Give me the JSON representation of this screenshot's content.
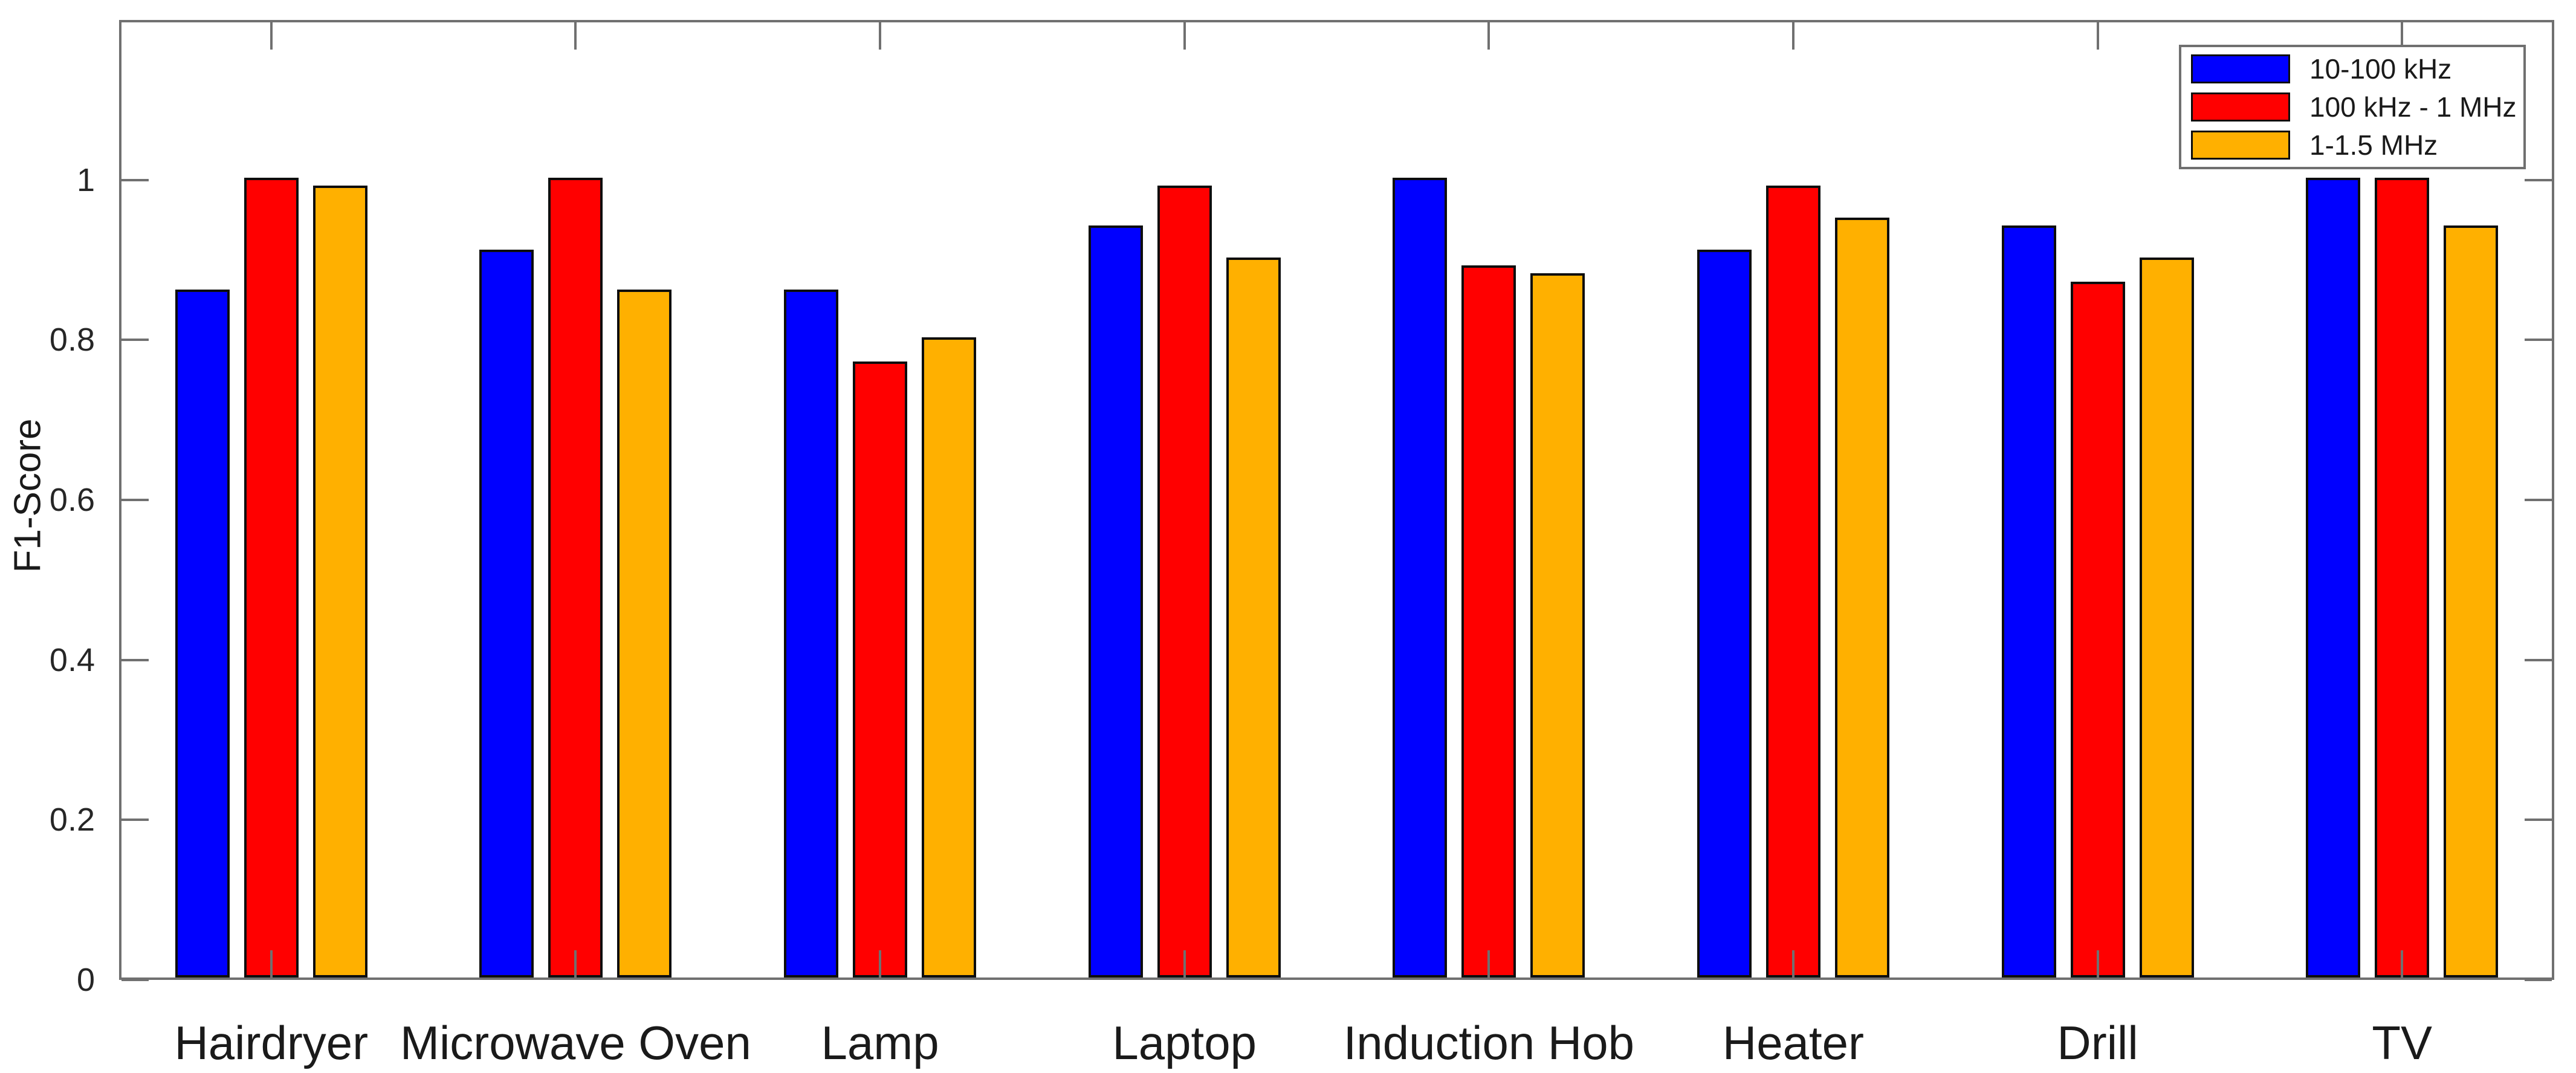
{
  "chart_data": {
    "type": "bar",
    "title": "",
    "categories": [
      "Hairdryer",
      "Microwave Oven",
      "Lamp",
      "Laptop",
      "Induction Hob",
      "Heater",
      "Drill",
      "TV"
    ],
    "series": [
      {
        "name": "10-100 kHz",
        "color": "#0000FF",
        "values": [
          0.86,
          0.91,
          0.86,
          0.94,
          1.0,
          0.91,
          0.94,
          1.0
        ]
      },
      {
        "name": "100 kHz - 1 MHz",
        "color": "#FF0000",
        "values": [
          1.0,
          1.0,
          0.77,
          0.99,
          0.89,
          0.99,
          0.87,
          1.0
        ]
      },
      {
        "name": "1-1.5 MHz",
        "color": "#FFB000",
        "values": [
          0.99,
          0.86,
          0.8,
          0.9,
          0.88,
          0.95,
          0.9,
          0.94
        ]
      }
    ],
    "xlabel": "",
    "ylabel": "F1-Score",
    "ylim": [
      0,
      1.2
    ],
    "yticks": [
      0,
      0.2,
      0.4,
      0.6,
      0.8,
      1
    ],
    "ytick_labels": [
      "0",
      "0.2",
      "0.4",
      "0.6",
      "0.8",
      "1"
    ],
    "grid": false,
    "legend_position": "top-right",
    "bar_edge_color": "#0D0D0D",
    "axis_color": "#707070",
    "tick_direction": "in",
    "background_color": "#FFFFFF"
  }
}
